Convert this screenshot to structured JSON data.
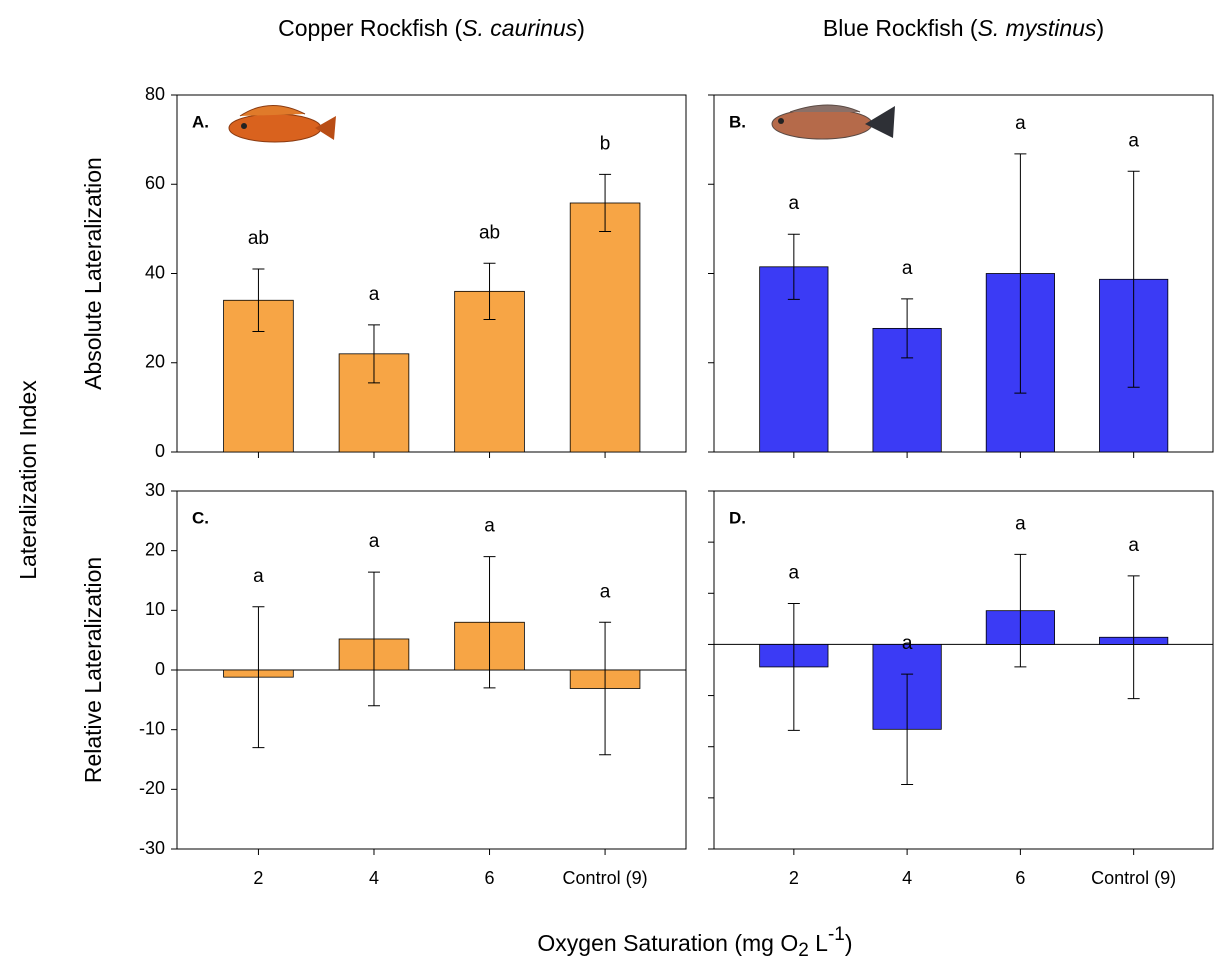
{
  "chart_data": [
    {
      "type": "bar",
      "panel_label": "A.",
      "title": [
        "Copper Rockfish (",
        "S. caurinus",
        ")"
      ],
      "ylabel": "Absolute Lateralization",
      "values": [
        34,
        22,
        36,
        55.8
      ],
      "errors": [
        7,
        6.5,
        6.3,
        6.4
      ],
      "letters": [
        "ab",
        "a",
        "ab",
        "b"
      ],
      "color": "#f7a545",
      "ylim": [
        0,
        80
      ],
      "yticks": [
        0,
        20,
        40,
        60,
        80
      ],
      "tick_labels": true,
      "zero_line": false
    },
    {
      "type": "bar",
      "panel_label": "B.",
      "title": [
        "Blue Rockfish (",
        "S. mystinus",
        ")"
      ],
      "values": [
        41.5,
        27.7,
        40,
        38.7
      ],
      "errors": [
        7.3,
        6.6,
        26.8,
        24.2
      ],
      "letters": [
        "a",
        "a",
        "a",
        "a"
      ],
      "color": "#3b3bf5",
      "ylim": [
        0,
        80
      ],
      "yticks": [
        0,
        20,
        40,
        60,
        80
      ],
      "tick_labels": false,
      "zero_line": false
    },
    {
      "type": "bar",
      "panel_label": "C.",
      "ylabel": "Relative Lateralization",
      "categories": [
        "2",
        "4",
        "6",
        "Control (9)"
      ],
      "values": [
        -1.2,
        5.2,
        8,
        -3.1
      ],
      "errors": [
        11.8,
        11.2,
        11,
        11.1
      ],
      "letters": [
        "a",
        "a",
        "a",
        "a"
      ],
      "color": "#f7a545",
      "ylim": [
        -30,
        30
      ],
      "yticks": [
        -30,
        -20,
        -10,
        0,
        10,
        20,
        30
      ],
      "tick_labels": true,
      "zero_line": true
    },
    {
      "type": "bar",
      "panel_label": "D.",
      "categories": [
        "2",
        "4",
        "6",
        "Control (9)"
      ],
      "values": [
        -2.2,
        -8.3,
        3.3,
        0.7
      ],
      "errors": [
        6.2,
        5.4,
        5.5,
        6.0
      ],
      "letters": [
        "a",
        "a",
        "a",
        "a"
      ],
      "color": "#3b3bf5",
      "ylim": [
        -20,
        15
      ],
      "yticks": [
        -20,
        -15,
        -10,
        -5,
        0,
        5,
        10,
        15
      ],
      "tick_labels": false,
      "zero_line": true
    }
  ],
  "figure": {
    "ylabel": "Lateralization Index",
    "xlabel": [
      "Oxygen Saturation (mg O",
      "2",
      " L",
      "-1",
      ")"
    ]
  }
}
